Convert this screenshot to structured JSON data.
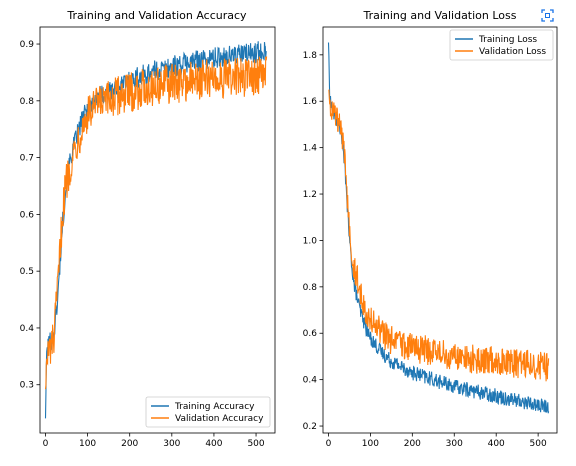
{
  "colors": {
    "training": "#1f77b4",
    "validation": "#ff7f0e",
    "expand_icon": "#1a73e8"
  },
  "toolbar": {
    "expand_icon": "expand-icon"
  },
  "chart_data": [
    {
      "type": "line",
      "title": "Training and Validation Accuracy",
      "xlabel": "",
      "ylabel": "",
      "xlim": [
        -13,
        545
      ],
      "ylim": [
        0.215,
        0.93
      ],
      "x_ticks": [
        0,
        100,
        200,
        300,
        400,
        500
      ],
      "x_tick_labels": [
        "0",
        "100",
        "200",
        "300",
        "400",
        "500"
      ],
      "y_ticks": [
        0.3,
        0.4,
        0.5,
        0.6,
        0.7,
        0.8,
        0.9
      ],
      "y_tick_labels": [
        "0.3",
        "0.4",
        "0.5",
        "0.6",
        "0.7",
        "0.8",
        "0.9"
      ],
      "grid": false,
      "legend_position": "lower-right",
      "series": [
        {
          "name": "Training Accuracy",
          "color": "#1f77b4",
          "x": [
            0,
            3,
            10,
            20,
            30,
            40,
            50,
            60,
            75,
            90,
            100,
            120,
            150,
            175,
            200,
            250,
            300,
            350,
            400,
            450,
            500,
            525
          ],
          "y": [
            0.245,
            0.36,
            0.375,
            0.39,
            0.46,
            0.58,
            0.66,
            0.7,
            0.74,
            0.77,
            0.785,
            0.805,
            0.815,
            0.825,
            0.835,
            0.85,
            0.86,
            0.87,
            0.875,
            0.88,
            0.885,
            0.89
          ],
          "noise": 0.012
        },
        {
          "name": "Validation Accuracy",
          "color": "#ff7f0e",
          "x": [
            0,
            3,
            10,
            20,
            30,
            40,
            50,
            60,
            75,
            90,
            100,
            120,
            150,
            175,
            200,
            250,
            300,
            350,
            400,
            450,
            500,
            525
          ],
          "y": [
            0.3,
            0.34,
            0.36,
            0.38,
            0.48,
            0.6,
            0.66,
            0.69,
            0.73,
            0.76,
            0.775,
            0.79,
            0.8,
            0.81,
            0.815,
            0.825,
            0.83,
            0.835,
            0.84,
            0.84,
            0.845,
            0.845
          ],
          "noise": 0.022
        }
      ]
    },
    {
      "type": "line",
      "title": "Training and Validation Loss",
      "xlabel": "",
      "ylabel": "",
      "xlim": [
        -13,
        545
      ],
      "ylim": [
        0.17,
        1.92
      ],
      "x_ticks": [
        0,
        100,
        200,
        300,
        400,
        500
      ],
      "x_tick_labels": [
        "0",
        "100",
        "200",
        "300",
        "400",
        "500"
      ],
      "y_ticks": [
        0.2,
        0.4,
        0.6,
        0.8,
        1.0,
        1.2,
        1.4,
        1.6,
        1.8
      ],
      "y_tick_labels": [
        "0.2",
        "0.4",
        "0.6",
        "0.8",
        "1.0",
        "1.2",
        "1.4",
        "1.6",
        "1.8"
      ],
      "grid": false,
      "legend_position": "upper-right",
      "series": [
        {
          "name": "Training Loss",
          "color": "#1f77b4",
          "x": [
            0,
            3,
            10,
            20,
            30,
            40,
            50,
            60,
            75,
            90,
            100,
            125,
            150,
            200,
            250,
            300,
            350,
            400,
            450,
            500,
            525
          ],
          "y": [
            1.86,
            1.62,
            1.55,
            1.52,
            1.48,
            1.3,
            1.0,
            0.82,
            0.7,
            0.62,
            0.58,
            0.52,
            0.48,
            0.43,
            0.4,
            0.37,
            0.35,
            0.33,
            0.31,
            0.29,
            0.28
          ],
          "noise": 0.02
        },
        {
          "name": "Validation Loss",
          "color": "#ff7f0e",
          "x": [
            0,
            3,
            10,
            20,
            30,
            40,
            50,
            60,
            75,
            90,
            100,
            125,
            150,
            200,
            250,
            300,
            350,
            400,
            450,
            500,
            525
          ],
          "y": [
            1.66,
            1.6,
            1.56,
            1.52,
            1.48,
            1.33,
            1.06,
            0.9,
            0.78,
            0.7,
            0.66,
            0.6,
            0.57,
            0.54,
            0.52,
            0.5,
            0.49,
            0.48,
            0.47,
            0.46,
            0.45
          ],
          "noise": 0.04
        }
      ]
    }
  ]
}
